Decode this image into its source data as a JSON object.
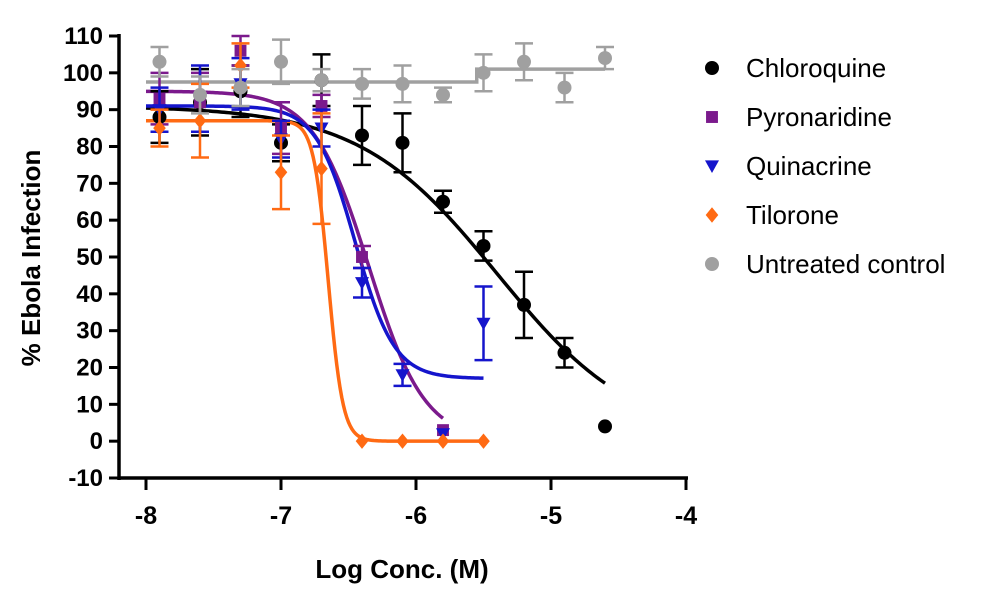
{
  "chart_data": {
    "type": "scatter",
    "title": "",
    "xlabel": "Log Conc. (M)",
    "ylabel": "% Ebola Infection",
    "xlim": [
      -8,
      -4
    ],
    "ylim": [
      -10,
      110
    ],
    "xticks": [
      -8,
      -7,
      -6,
      -5,
      -4
    ],
    "xtick_labels": [
      "-8",
      "-7",
      "-6",
      "-5",
      "-4"
    ],
    "yticks": [
      -10,
      0,
      10,
      20,
      30,
      40,
      50,
      60,
      70,
      80,
      90,
      100,
      110
    ],
    "ytick_labels": [
      "-10",
      "0",
      "10",
      "20",
      "30",
      "40",
      "50",
      "60",
      "70",
      "80",
      "90",
      "100",
      "110"
    ],
    "legend_position": "right",
    "series": [
      {
        "name": "Chloroquine",
        "color": "#000000",
        "marker": "circle",
        "x": [
          -7.9,
          -7.6,
          -7.3,
          -7.0,
          -6.7,
          -6.4,
          -6.1,
          -5.8,
          -5.5,
          -5.2,
          -4.9,
          -4.6
        ],
        "y": [
          88,
          92,
          95,
          81,
          98,
          83,
          81,
          65,
          53,
          37,
          24,
          4
        ],
        "err": [
          7,
          9,
          7,
          5,
          7,
          8,
          8,
          3,
          4,
          9,
          4,
          0
        ],
        "fit": {
          "top": 91,
          "bottom": 0,
          "logec50": -5.4,
          "hill": 0.85,
          "x_range": [
            -8.0,
            -4.6
          ]
        }
      },
      {
        "name": "Pyronaridine",
        "color": "#7B1A8C",
        "marker": "square",
        "x": [
          -7.9,
          -7.6,
          -7.3,
          -7.0,
          -6.7,
          -6.4,
          -5.8
        ],
        "y": [
          93,
          92,
          106,
          85,
          91,
          50,
          3
        ],
        "err": [
          7,
          8,
          4,
          7,
          3,
          3,
          0
        ],
        "fit": {
          "top": 95,
          "bottom": 0,
          "logec50": -6.35,
          "hill": 2.1,
          "x_range": [
            -8.0,
            -5.8
          ]
        }
      },
      {
        "name": "Quinacrine",
        "color": "#1515CC",
        "marker": "triangle-down",
        "x": [
          -7.9,
          -7.6,
          -7.3,
          -7.0,
          -6.7,
          -6.4,
          -6.1,
          -5.8,
          -5.5
        ],
        "y": [
          90,
          93,
          97,
          82,
          85,
          43,
          18,
          2,
          32
        ],
        "err": [
          6,
          9,
          7,
          5,
          5,
          4,
          3,
          0,
          10
        ],
        "fit": {
          "top": 91,
          "bottom": 17,
          "logec50": -6.45,
          "hill": 3.0,
          "x_range": [
            -8.0,
            -5.5
          ]
        }
      },
      {
        "name": "Tilorone",
        "color": "#FF6A13",
        "marker": "diamond",
        "x": [
          -7.9,
          -7.6,
          -7.3,
          -7.0,
          -6.7,
          -6.4,
          -6.1,
          -5.8,
          -5.5
        ],
        "y": [
          85,
          87,
          102,
          73,
          74,
          0,
          0,
          0,
          0
        ],
        "err": [
          5,
          10,
          6,
          10,
          15,
          0,
          0,
          0,
          0
        ],
        "fit": {
          "top": 87,
          "bottom": 0,
          "logec50": -6.65,
          "hill": 8.0,
          "x_range": [
            -8.0,
            -5.5
          ]
        }
      },
      {
        "name": "Untreated control",
        "color": "#A0A0A0",
        "marker": "circle",
        "x": [
          -7.9,
          -7.6,
          -7.3,
          -7.0,
          -6.7,
          -6.4,
          -6.1,
          -5.8,
          -5.5,
          -5.2,
          -4.9,
          -4.6
        ],
        "y": [
          103,
          94,
          96,
          103,
          98,
          97,
          97,
          94,
          100,
          103,
          96,
          104
        ],
        "err": [
          4,
          5,
          5,
          6,
          3,
          4,
          5,
          2,
          5,
          5,
          4,
          3
        ],
        "fit": {
          "type": "step",
          "x_range": [
            -8.0,
            -4.6
          ],
          "low": 97.5,
          "high": 101,
          "step_x": -5.55
        }
      }
    ]
  }
}
